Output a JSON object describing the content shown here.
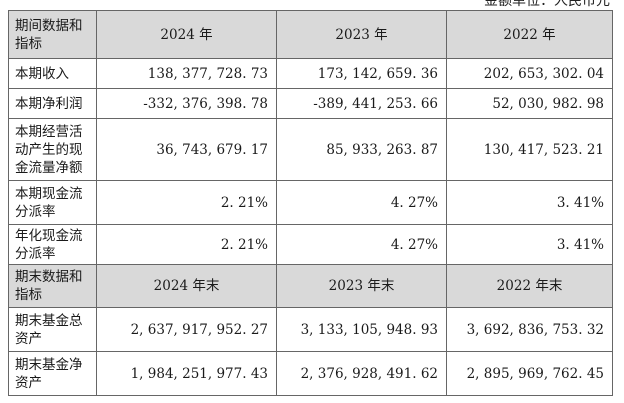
{
  "unit_note": "金额单位：人民币元",
  "section1": {
    "header": {
      "label": "期间数据和指标",
      "years": [
        "2024 年",
        "2023 年",
        "2022 年"
      ]
    },
    "rows": [
      {
        "label": "本期收入",
        "values": [
          "138, 377, 728. 73",
          "173, 142, 659. 36",
          "202, 653, 302. 04"
        ]
      },
      {
        "label": "本期净利润",
        "values": [
          "-332, 376, 398. 78",
          "-389, 441, 253. 66",
          "52, 030, 982. 98"
        ]
      },
      {
        "label": "本期经营活动产生的现金流量净额",
        "values": [
          "36, 743, 679. 17",
          "85, 933, 263. 87",
          "130, 417, 523. 21"
        ]
      },
      {
        "label": "本期现金流分派率",
        "values": [
          "2. 21%",
          "4. 27%",
          "3. 41%"
        ]
      },
      {
        "label": "年化现金流分派率",
        "values": [
          "2. 21%",
          "4. 27%",
          "3. 41%"
        ]
      }
    ]
  },
  "section2": {
    "header": {
      "label": "期末数据和指标",
      "years": [
        "2024 年末",
        "2023 年末",
        "2022 年末"
      ]
    },
    "rows": [
      {
        "label": "期末基金总资产",
        "values": [
          "2, 637, 917, 952. 27",
          "3, 133, 105, 948. 93",
          "3, 692, 836, 753. 32"
        ]
      },
      {
        "label": "期末基金净资产",
        "values": [
          "1, 984, 251, 977. 43",
          "2, 376, 928, 491. 62",
          "2, 895, 969, 762. 45"
        ]
      }
    ]
  }
}
